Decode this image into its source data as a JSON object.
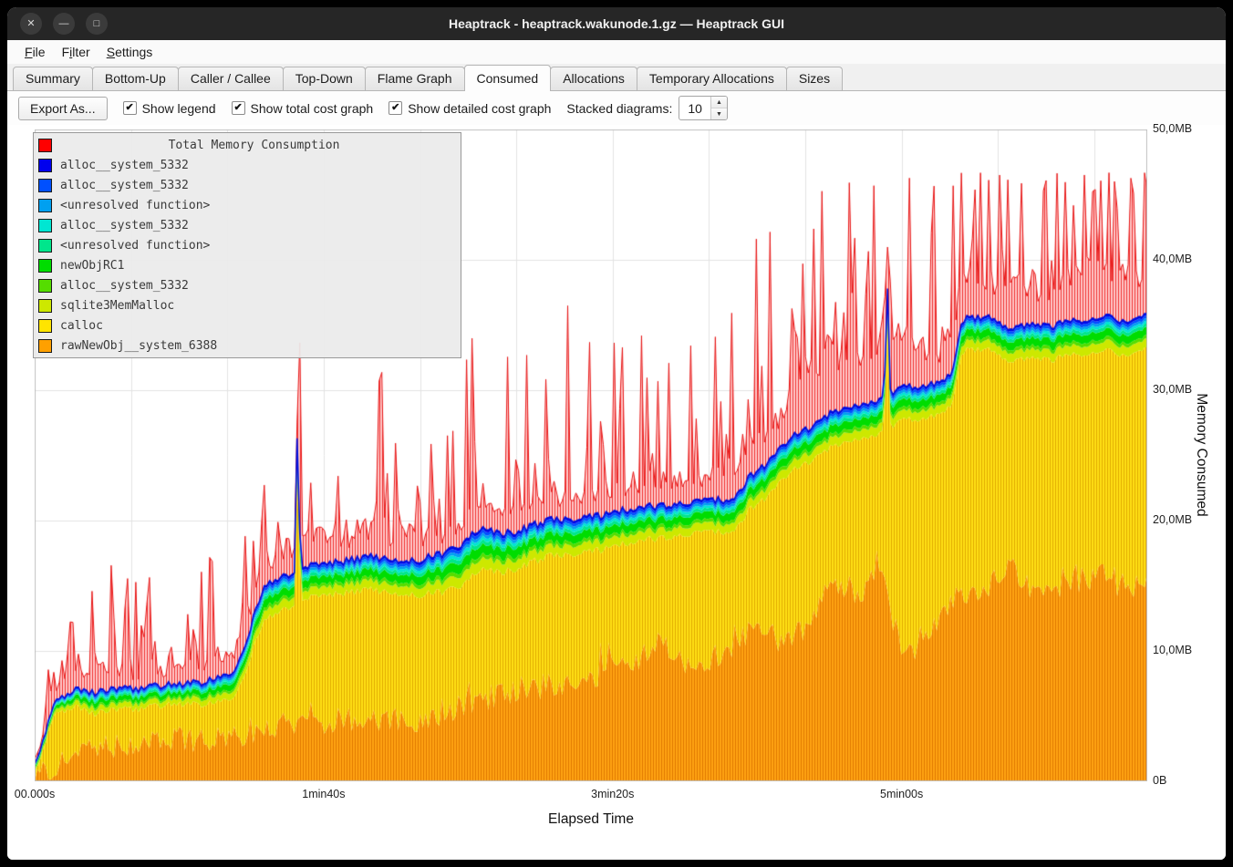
{
  "window": {
    "title": "Heaptrack - heaptrack.wakunode.1.gz — Heaptrack GUI",
    "controls": [
      {
        "name": "close",
        "glyph": "✕"
      },
      {
        "name": "minimize",
        "glyph": "—"
      },
      {
        "name": "maximize",
        "glyph": "□"
      }
    ]
  },
  "menubar": {
    "items": [
      {
        "label": "File",
        "accel": 0
      },
      {
        "label": "Filter",
        "accel": 1
      },
      {
        "label": "Settings",
        "accel": 0
      }
    ]
  },
  "tabs": {
    "active": "Consumed",
    "items": [
      "Summary",
      "Bottom-Up",
      "Caller / Callee",
      "Top-Down",
      "Flame Graph",
      "Consumed",
      "Allocations",
      "Temporary Allocations",
      "Sizes"
    ]
  },
  "toolbar": {
    "export_label": "Export As...",
    "checkboxes": [
      {
        "label": "Show legend",
        "checked": true
      },
      {
        "label": "Show total cost graph",
        "checked": true
      },
      {
        "label": "Show detailed cost graph",
        "checked": true
      }
    ],
    "stacked_label": "Stacked diagrams:",
    "stacked_value": "10"
  },
  "chart_data": {
    "type": "area",
    "legend_title": "Total Memory Consumption",
    "legend_title_color": "#ff0000",
    "xlabel": "Elapsed Time",
    "ylabel": "Memory Consumed",
    "x_max_seconds": 385,
    "y_max_mb": 50,
    "x_grid_step_seconds": 33.333,
    "y_grid_step_mb": 10,
    "x_ticks": [
      {
        "t": 0,
        "label": "00.000s"
      },
      {
        "t": 100,
        "label": "1min40s"
      },
      {
        "t": 200,
        "label": "3min20s"
      },
      {
        "t": 300,
        "label": "5min00s"
      }
    ],
    "y_ticks": [
      {
        "v": 0,
        "label": "0B"
      },
      {
        "v": 10,
        "label": "10,0MB"
      },
      {
        "v": 20,
        "label": "20,0MB"
      },
      {
        "v": 30,
        "label": "30,0MB"
      },
      {
        "v": 40,
        "label": "40,0MB"
      },
      {
        "v": 50,
        "label": "50,0MB"
      }
    ],
    "legend": [
      {
        "label": "alloc__system_5332",
        "color": "#0000ee"
      },
      {
        "label": "alloc__system_5332",
        "color": "#0050ff"
      },
      {
        "label": "<unresolved function>",
        "color": "#00a0f0"
      },
      {
        "label": "alloc__system_5332",
        "color": "#00e6d2"
      },
      {
        "label": "<unresolved function>",
        "color": "#00e68c"
      },
      {
        "label": "newObjRC1",
        "color": "#00dd00"
      },
      {
        "label": "alloc__system_5332",
        "color": "#55dd00"
      },
      {
        "label": "sqlite3MemMalloc",
        "color": "#cde800"
      },
      {
        "label": "calloc",
        "color": "#ffe400"
      },
      {
        "label": "rawNewObj__system_6388",
        "color": "#ffa000"
      }
    ],
    "area_colors": {
      "total_fill_base": "#ffc9c9",
      "total_fill_stripe": "#f03030",
      "total_line": "#e81717",
      "stack_top_line": "#0011dd",
      "calloc_base": "#ffe014",
      "calloc_stripe": "#e0a800",
      "raw_base": "#ffa313",
      "raw_stripe": "#e07800"
    },
    "anchors": {
      "stack_top_mb": [
        [
          0,
          1.2
        ],
        [
          3,
          3.2
        ],
        [
          7,
          6
        ],
        [
          13,
          7
        ],
        [
          20,
          6.8
        ],
        [
          28,
          7.2
        ],
        [
          35,
          7
        ],
        [
          43,
          7.3
        ],
        [
          51,
          7.4
        ],
        [
          59,
          7.6
        ],
        [
          67,
          8.1
        ],
        [
          71,
          9.2
        ],
        [
          74,
          11
        ],
        [
          77,
          13.7
        ],
        [
          80,
          15.1
        ],
        [
          83,
          15.5
        ],
        [
          88,
          15.9
        ],
        [
          90,
          16
        ],
        [
          91,
          28.6
        ],
        [
          92,
          16.2
        ],
        [
          96,
          16.5
        ],
        [
          104,
          16.8
        ],
        [
          115,
          17.2
        ],
        [
          123,
          17
        ],
        [
          131,
          16.9
        ],
        [
          139,
          17.3
        ],
        [
          147,
          17.9
        ],
        [
          153,
          19.3
        ],
        [
          160,
          19.1
        ],
        [
          166,
          19
        ],
        [
          172,
          19.6
        ],
        [
          178,
          20
        ],
        [
          186,
          20.1
        ],
        [
          194,
          20.3
        ],
        [
          202,
          20.7
        ],
        [
          210,
          21
        ],
        [
          218,
          21.2
        ],
        [
          226,
          21.4
        ],
        [
          234,
          21.5
        ],
        [
          242,
          21.7
        ],
        [
          248,
          23.5
        ],
        [
          254,
          24.5
        ],
        [
          261,
          26.3
        ],
        [
          267,
          27
        ],
        [
          273,
          28
        ],
        [
          283,
          28.7
        ],
        [
          289,
          29.1
        ],
        [
          294,
          29.5
        ],
        [
          295,
          39.2
        ],
        [
          296,
          29.8
        ],
        [
          300,
          30.3
        ],
        [
          305,
          30.1
        ],
        [
          310,
          30.4
        ],
        [
          315,
          30.8
        ],
        [
          318,
          31.5
        ],
        [
          321,
          35.4
        ],
        [
          326,
          35.6
        ],
        [
          330,
          35.7
        ],
        [
          337,
          34.7
        ],
        [
          345,
          34.9
        ],
        [
          353,
          35
        ],
        [
          361,
          35.4
        ],
        [
          369,
          35.7
        ],
        [
          377,
          35.2
        ],
        [
          382,
          35.4
        ],
        [
          385,
          35.7
        ]
      ],
      "total_red_extra_mb": [
        [
          0,
          0.4
        ],
        [
          10,
          1.5
        ],
        [
          20,
          2.5
        ],
        [
          40,
          2
        ],
        [
          60,
          2
        ],
        [
          75,
          3
        ],
        [
          90,
          3
        ],
        [
          120,
          3
        ],
        [
          150,
          2.5
        ],
        [
          180,
          2.5
        ],
        [
          210,
          2.5
        ],
        [
          240,
          2.5
        ],
        [
          262,
          3.5
        ],
        [
          270,
          6
        ],
        [
          278,
          8
        ],
        [
          286,
          9
        ],
        [
          294,
          8
        ],
        [
          302,
          5
        ],
        [
          310,
          4
        ],
        [
          330,
          4.5
        ],
        [
          350,
          5
        ],
        [
          370,
          5
        ],
        [
          385,
          5
        ]
      ],
      "raw_new_obj_top_mb": [
        [
          0,
          0.4
        ],
        [
          7,
          1.3
        ],
        [
          20,
          2.4
        ],
        [
          35,
          2.9
        ],
        [
          51,
          3.1
        ],
        [
          67,
          3.4
        ],
        [
          83,
          4.3
        ],
        [
          99,
          4.6
        ],
        [
          115,
          4.8
        ],
        [
          131,
          4.6
        ],
        [
          147,
          5.7
        ],
        [
          162,
          6.7
        ],
        [
          178,
          7.4
        ],
        [
          194,
          8.1
        ],
        [
          210,
          9.5
        ],
        [
          216,
          10.9
        ],
        [
          226,
          8.8
        ],
        [
          242,
          10.2
        ],
        [
          248,
          11.6
        ],
        [
          258,
          10.9
        ],
        [
          267,
          11.6
        ],
        [
          273,
          14.4
        ],
        [
          280,
          15.1
        ],
        [
          286,
          13.7
        ],
        [
          292,
          16.5
        ],
        [
          299,
          10.9
        ],
        [
          305,
          9.5
        ],
        [
          311,
          12.3
        ],
        [
          321,
          14.4
        ],
        [
          330,
          15.1
        ],
        [
          337,
          16.5
        ],
        [
          346,
          14.4
        ],
        [
          356,
          15.1
        ],
        [
          369,
          15.8
        ],
        [
          378,
          14.8
        ],
        [
          385,
          15.5
        ]
      ],
      "thin_bands_gap_mb": [
        [
          0,
          0.6
        ],
        [
          20,
          1.6
        ],
        [
          50,
          1.5
        ],
        [
          70,
          2
        ],
        [
          80,
          2.6
        ],
        [
          100,
          2.4
        ],
        [
          130,
          2.6
        ],
        [
          150,
          3.2
        ],
        [
          170,
          2.8
        ],
        [
          200,
          2.6
        ],
        [
          230,
          2.4
        ],
        [
          260,
          2.6
        ],
        [
          290,
          2.6
        ],
        [
          320,
          2.4
        ],
        [
          350,
          2.6
        ],
        [
          385,
          2.6
        ]
      ]
    },
    "band_fractions": [
      {
        "name": "sqlite3MemMalloc",
        "color": "#cde800",
        "f": 0.26
      },
      {
        "name": "alloc__system_5332",
        "color": "#55dd00",
        "f": 0.1
      },
      {
        "name": "newObjRC1",
        "color": "#00dd00",
        "f": 0.24
      },
      {
        "name": "<unresolved function>",
        "color": "#00e68c",
        "f": 0.1
      },
      {
        "name": "alloc__system_5332",
        "color": "#00e6d2",
        "f": 0.08
      },
      {
        "name": "<unresolved function>",
        "color": "#00a0f0",
        "f": 0.08
      },
      {
        "name": "alloc__system_5332",
        "color": "#0050ff",
        "f": 0.08
      },
      {
        "name": "alloc__system_5332",
        "color": "#0000ee",
        "f": 0.06
      }
    ]
  }
}
